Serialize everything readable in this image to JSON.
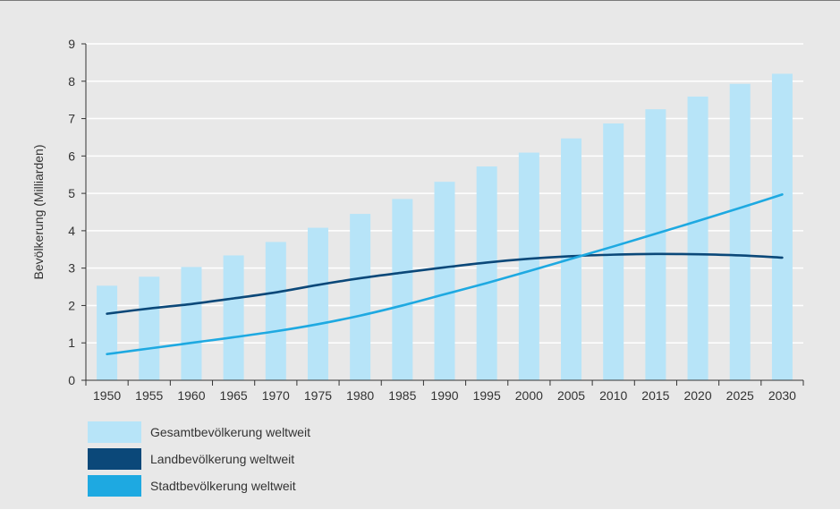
{
  "colors": {
    "background": "#e8e8e8",
    "total_bar": "#b7e4f8",
    "rural_line": "#0b4879",
    "urban_line": "#1ea9e1",
    "axis": "#333333"
  },
  "chart_data": {
    "type": "bar",
    "title": "",
    "xlabel": "",
    "ylabel": "Bevölkerung (Milliarden)",
    "ylim": [
      0,
      9
    ],
    "yticks": [
      0,
      1,
      2,
      3,
      4,
      5,
      6,
      7,
      8,
      9
    ],
    "grid": "horizontal",
    "legend_position": "bottom-left",
    "categories": [
      "1950",
      "1955",
      "1960",
      "1965",
      "1970",
      "1975",
      "1980",
      "1985",
      "1990",
      "1995",
      "2000",
      "2005",
      "2010",
      "2015",
      "2020",
      "2025",
      "2030"
    ],
    "series": [
      {
        "name": "Gesamtbevölkerung weltweit",
        "type": "bar",
        "values": [
          2.53,
          2.77,
          3.03,
          3.34,
          3.7,
          4.08,
          4.45,
          4.85,
          5.31,
          5.72,
          6.09,
          6.47,
          6.87,
          7.25,
          7.59,
          7.93,
          8.2
        ]
      },
      {
        "name": "Landbevölkerung weltweit",
        "type": "line",
        "values": [
          1.78,
          1.92,
          2.04,
          2.19,
          2.35,
          2.55,
          2.73,
          2.88,
          3.02,
          3.15,
          3.25,
          3.32,
          3.36,
          3.38,
          3.37,
          3.34,
          3.28
        ]
      },
      {
        "name": "Stadtbevölkerung weltweit",
        "type": "line",
        "values": [
          0.7,
          0.85,
          1.0,
          1.15,
          1.31,
          1.5,
          1.73,
          2.0,
          2.3,
          2.6,
          2.92,
          3.25,
          3.58,
          3.92,
          4.26,
          4.61,
          4.97
        ]
      }
    ]
  },
  "legend": {
    "items": [
      {
        "label": "Gesamtbevölkerung weltweit"
      },
      {
        "label": "Landbevölkerung weltweit"
      },
      {
        "label": "Stadtbevölkerung weltweit"
      }
    ]
  }
}
